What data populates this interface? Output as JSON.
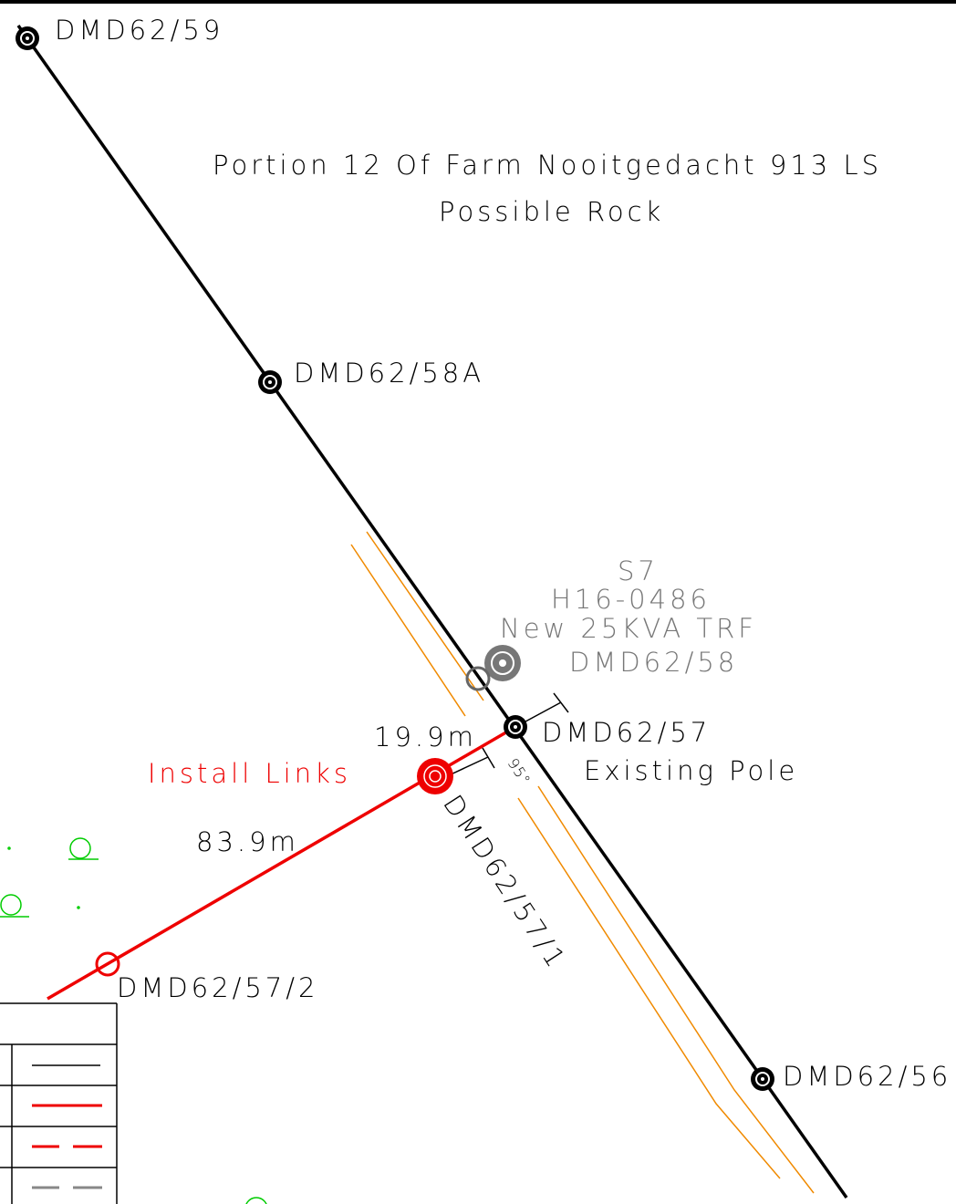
{
  "labels": {
    "pole_59": "DMD62/59",
    "portion": "Portion 12 Of Farm Nooitgedacht 913 LS",
    "rock": "Possible Rock",
    "pole_58a": "DMD62/58A",
    "s7": "S7",
    "h16": "H16-0486",
    "trf": "New 25KVA TRF",
    "pole_58": "DMD62/58",
    "dist_1": "19.9m",
    "pole_57": "DMD62/57",
    "existing": "Existing Pole",
    "install": "Install Links",
    "angle": "95°",
    "pole_57_1": "DMD62/57/1",
    "dist_2": "83.9m",
    "pole_57_2": "DMD62/57/2",
    "pole_56": "DMD62/56"
  }
}
